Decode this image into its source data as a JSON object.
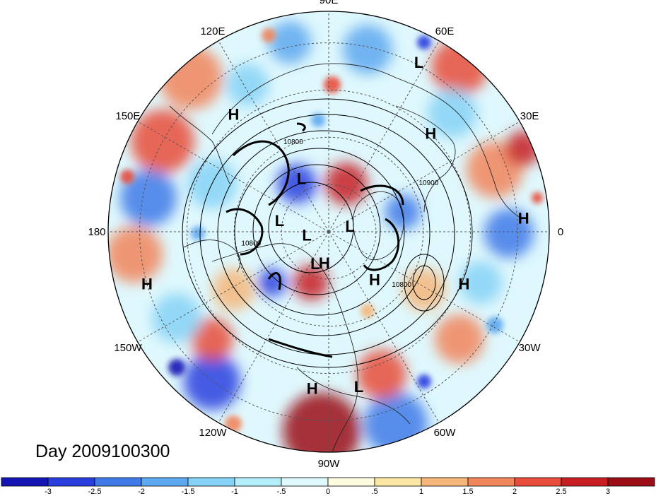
{
  "date_label": "Day 2009100300",
  "longitude_labels": [
    {
      "text": "90E",
      "angle": 90
    },
    {
      "text": "60E",
      "angle": 60
    },
    {
      "text": "30E",
      "angle": 30
    },
    {
      "text": "0",
      "angle": 0
    },
    {
      "text": "30W",
      "angle": -30
    },
    {
      "text": "60W",
      "angle": -60
    },
    {
      "text": "90W",
      "angle": -90
    },
    {
      "text": "120W",
      "angle": -120
    },
    {
      "text": "150W",
      "angle": -150
    },
    {
      "text": "180",
      "angle": 180
    },
    {
      "text": "150E",
      "angle": 150
    },
    {
      "text": "120E",
      "angle": 120
    }
  ],
  "pressure_markers": [
    {
      "text": "L",
      "lon": 62,
      "lat": 29
    },
    {
      "text": "H",
      "lon": 129,
      "lat": 42
    },
    {
      "text": "H",
      "lon": 44,
      "lat": 45
    },
    {
      "text": "H",
      "lon": 4,
      "lat": 28
    },
    {
      "text": "L",
      "lon": 117,
      "lat": 71
    },
    {
      "text": "L",
      "lon": 167,
      "lat": 74
    },
    {
      "text": "L",
      "lon": -172,
      "lat": 83
    },
    {
      "text": "L",
      "lon": 15,
      "lat": 83
    },
    {
      "text": "H",
      "lon": -164,
      "lat": 30
    },
    {
      "text": "L",
      "lon": -113,
      "lat": 79
    },
    {
      "text": "H",
      "lon": -98,
      "lat": 80
    },
    {
      "text": "H",
      "lon": -46,
      "lat": 69
    },
    {
      "text": "H",
      "lon": -21,
      "lat": 44
    },
    {
      "text": "H",
      "lon": -96,
      "lat": 40
    },
    {
      "text": "L",
      "lon": -79,
      "lat": 40
    }
  ],
  "contour_labels": [
    {
      "text": "10800",
      "lon": 112,
      "lat": 60
    },
    {
      "text": "10900",
      "lon": 25,
      "lat": 55
    },
    {
      "text": "10800",
      "lon": -170,
      "lat": 65
    },
    {
      "text": "10800",
      "lon": -37,
      "lat": 61
    }
  ],
  "colorbar": {
    "colors": [
      "#1515b4",
      "#2a3ede",
      "#3f7ae8",
      "#5ea8ef",
      "#86d2f6",
      "#b3eefb",
      "#dff8fd",
      "#fdfbe0",
      "#fbe7a3",
      "#f6b679",
      "#f1855c",
      "#e84c3a",
      "#c71e24",
      "#9b0d16"
    ],
    "tick_labels": [
      "-3",
      "-2.5",
      "-2",
      "-1.5",
      "-1",
      "-.5",
      "0",
      ".5",
      "1",
      "1.5",
      "2",
      "2.5",
      "3"
    ]
  },
  "colors": {
    "ocean_blue": "#5ea8ef",
    "warm_red": "#e84c3a"
  }
}
